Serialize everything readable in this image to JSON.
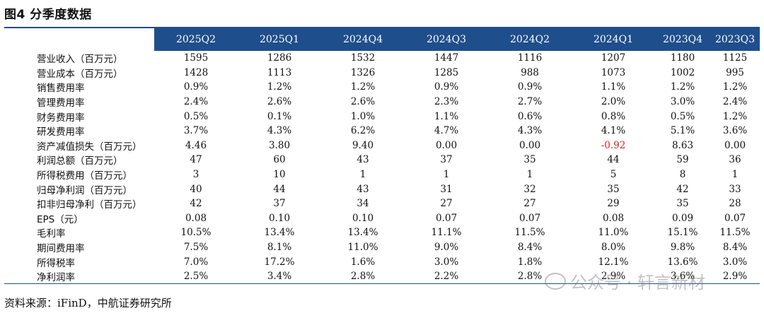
{
  "title": "图4  分季度数据",
  "columns": [
    "2025Q2",
    "2025Q1",
    "2024Q4",
    "2024Q3",
    "2024Q2",
    "2024Q1",
    "2023Q4",
    "2023Q3"
  ],
  "rows": [
    {
      "label": "营业收入（百万元）",
      "values": [
        "1595",
        "1286",
        "1532",
        "1447",
        "1116",
        "1207",
        "1180",
        "1125"
      ]
    },
    {
      "label": "营业成本（百万元）",
      "values": [
        "1428",
        "1113",
        "1326",
        "1285",
        "988",
        "1073",
        "1002",
        "995"
      ]
    },
    {
      "label": "销售费用率",
      "values": [
        "0.9%",
        "1.2%",
        "1.2%",
        "0.9%",
        "0.9%",
        "1.1%",
        "1.2%",
        "1.2%"
      ]
    },
    {
      "label": "管理费用率",
      "values": [
        "2.4%",
        "2.6%",
        "2.6%",
        "2.3%",
        "2.7%",
        "2.0%",
        "3.0%",
        "2.4%"
      ]
    },
    {
      "label": "财务费用率",
      "values": [
        "0.5%",
        "0.1%",
        "1.0%",
        "1.1%",
        "0.6%",
        "0.8%",
        "0.5%",
        "1.2%"
      ]
    },
    {
      "label": "研发费用率",
      "values": [
        "3.7%",
        "4.3%",
        "6.2%",
        "4.7%",
        "4.3%",
        "4.1%",
        "5.1%",
        "3.6%"
      ]
    },
    {
      "label": "资产减值损失（百万元）",
      "values": [
        "4.46",
        "3.80",
        "9.40",
        "0.00",
        "0.00",
        "-0.92",
        "8.63",
        "0.00"
      ]
    },
    {
      "label": "利润总额（百万元）",
      "values": [
        "47",
        "60",
        "43",
        "37",
        "35",
        "44",
        "59",
        "36"
      ]
    },
    {
      "label": "所得税费用（百万元）",
      "values": [
        "3",
        "10",
        "1",
        "1",
        "1",
        "5",
        "8",
        "1"
      ]
    },
    {
      "label": "归母净利润（百万元）",
      "values": [
        "40",
        "44",
        "43",
        "31",
        "32",
        "35",
        "42",
        "33"
      ]
    },
    {
      "label": "扣非归母净利（百万元）",
      "values": [
        "42",
        "37",
        "34",
        "27",
        "27",
        "29",
        "35",
        "28"
      ]
    },
    {
      "label": "EPS（元）",
      "values": [
        "0.08",
        "0.10",
        "0.10",
        "0.07",
        "0.07",
        "0.08",
        "0.09",
        "0.07"
      ]
    },
    {
      "label": "毛利率",
      "values": [
        "10.5%",
        "13.4%",
        "13.4%",
        "11.1%",
        "11.5%",
        "11.0%",
        "15.1%",
        "11.5%"
      ]
    },
    {
      "label": "期间费用率",
      "values": [
        "7.5%",
        "8.1%",
        "11.0%",
        "9.0%",
        "8.4%",
        "8.0%",
        "9.8%",
        "8.4%"
      ]
    },
    {
      "label": "所得税率",
      "values": [
        "7.0%",
        "17.2%",
        "1.6%",
        "3.0%",
        "1.8%",
        "12.1%",
        "13.6%",
        "3.0%"
      ]
    },
    {
      "label": "净利润率",
      "values": [
        "2.5%",
        "3.4%",
        "2.8%",
        "2.2%",
        "2.8%",
        "2.9%",
        "3.6%",
        "2.9%"
      ]
    }
  ],
  "negative_color": "#e0201c",
  "header_color": "#1f4e8c",
  "source": "资料来源：iFinD，中航证券研究所",
  "watermark": "公众号 · 轩言新材"
}
